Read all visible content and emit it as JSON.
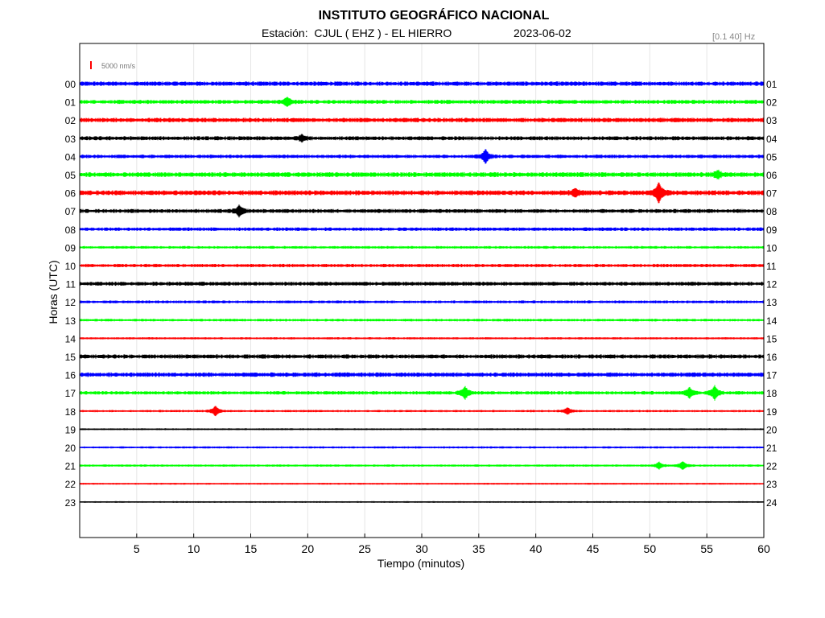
{
  "header": {
    "institution": "INSTITUTO GEOGRÁFICO NACIONAL",
    "station_line": "Estación:  CJUL ( EHZ ) - EL HIERRO",
    "date": "2023-06-02",
    "filter": "[0.1 40] Hz"
  },
  "chart_data": {
    "type": "line",
    "title": "INSTITUTO GEOGRÁFICO NACIONAL",
    "xlabel": "Tiempo (minutos)",
    "ylabel": "Horas (UTC)",
    "xlim": [
      0,
      60
    ],
    "x_ticks": [
      5,
      10,
      15,
      20,
      25,
      30,
      35,
      40,
      45,
      50,
      55,
      60
    ],
    "grid": true,
    "scale_label": "5000 nm/s",
    "scale_color": "#ff0000",
    "left_hour_labels": [
      "00",
      "01",
      "02",
      "03",
      "04",
      "05",
      "06",
      "07",
      "08",
      "09",
      "10",
      "11",
      "12",
      "13",
      "14",
      "15",
      "16",
      "17",
      "18",
      "19",
      "20",
      "21",
      "22",
      "23"
    ],
    "right_hour_labels": [
      "01",
      "02",
      "03",
      "04",
      "05",
      "06",
      "07",
      "08",
      "09",
      "10",
      "11",
      "12",
      "13",
      "14",
      "15",
      "16",
      "17",
      "18",
      "19",
      "20",
      "21",
      "22",
      "23",
      "24"
    ],
    "trace_colors": [
      "#0000ff",
      "#00ff00",
      "#ff0000",
      "#000000"
    ],
    "noise_amplitude": [
      2.0,
      1.8,
      2.0,
      1.8,
      1.6,
      2.2,
      2.2,
      1.8,
      1.6,
      1.2,
      1.5,
      1.8,
      1.3,
      1.2,
      1.0,
      1.9,
      2.0,
      1.6,
      1.0,
      0.8,
      1.0,
      1.0,
      0.8,
      0.7
    ],
    "events": [
      {
        "hour": 1,
        "minute": 18.2,
        "amplitude": 5
      },
      {
        "hour": 3,
        "minute": 19.5,
        "amplitude": 4
      },
      {
        "hour": 4,
        "minute": 35.6,
        "amplitude": 8
      },
      {
        "hour": 5,
        "minute": 56.0,
        "amplitude": 4
      },
      {
        "hour": 6,
        "minute": 50.8,
        "amplitude": 12
      },
      {
        "hour": 6,
        "minute": 43.5,
        "amplitude": 4
      },
      {
        "hour": 7,
        "minute": 14.0,
        "amplitude": 6
      },
      {
        "hour": 17,
        "minute": 33.8,
        "amplitude": 7
      },
      {
        "hour": 17,
        "minute": 53.5,
        "amplitude": 6
      },
      {
        "hour": 17,
        "minute": 55.7,
        "amplitude": 8
      },
      {
        "hour": 18,
        "minute": 11.9,
        "amplitude": 6
      },
      {
        "hour": 18,
        "minute": 42.8,
        "amplitude": 4
      },
      {
        "hour": 21,
        "minute": 50.8,
        "amplitude": 4
      },
      {
        "hour": 21,
        "minute": 52.9,
        "amplitude": 5
      }
    ]
  }
}
